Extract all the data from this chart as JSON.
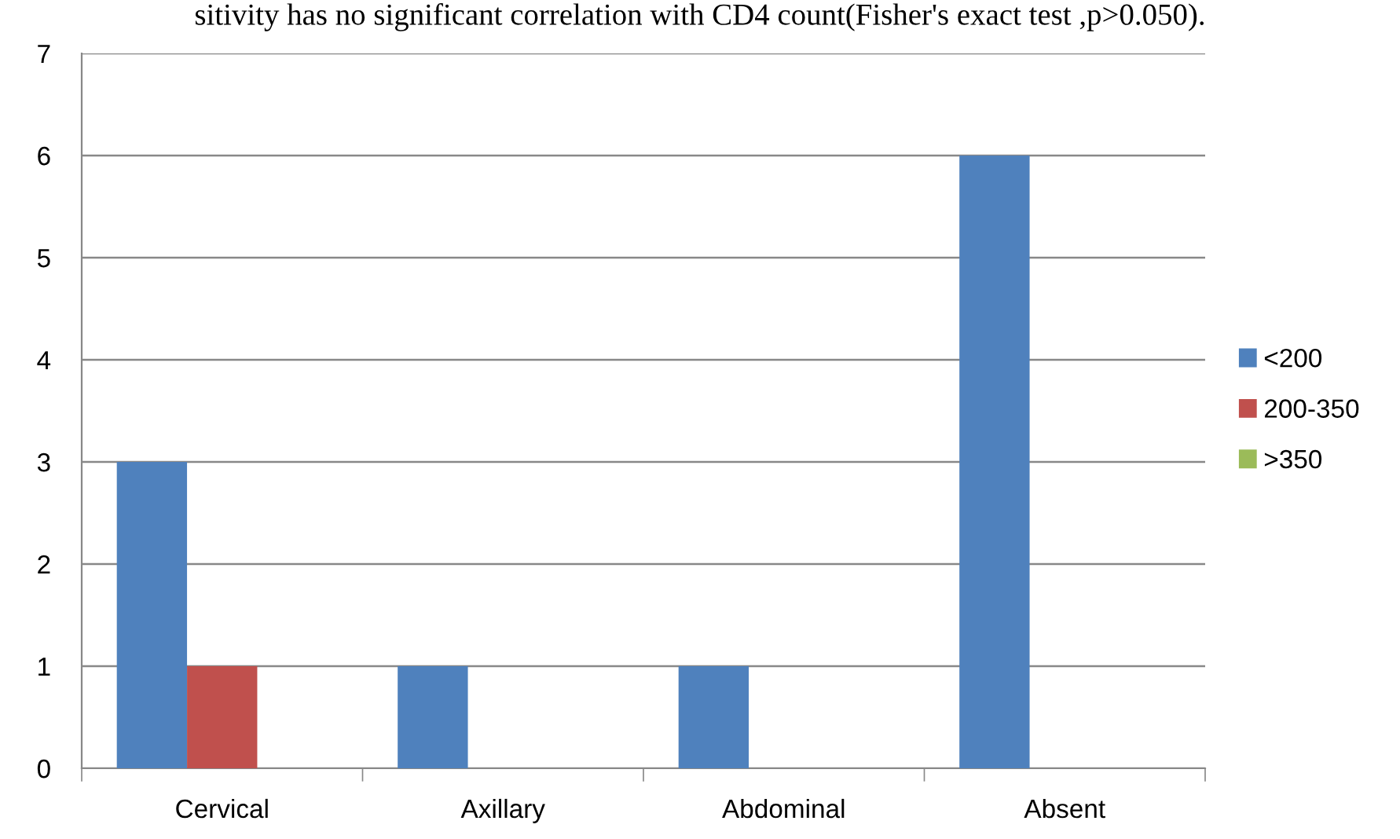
{
  "chart_data": {
    "type": "bar",
    "categories": [
      "Cervical",
      "Axillary",
      "Abdominal",
      "Absent"
    ],
    "series": [
      {
        "name": "<200",
        "color": "#4f81bd",
        "values": [
          3,
          1,
          1,
          6
        ]
      },
      {
        "name": "200-350",
        "color": "#c0504d",
        "values": [
          1,
          0,
          0,
          0
        ]
      },
      {
        "name": ">350",
        "color": "#9bbb59",
        "values": [
          0,
          0,
          0,
          0
        ]
      }
    ],
    "ylim": [
      0,
      7
    ],
    "yticks": [
      0,
      1,
      2,
      3,
      4,
      5,
      6,
      7
    ],
    "grid": "y",
    "legend": "right",
    "annotations": [
      "sitivity has no significant correlation with CD4 count(Fisher's exact test ,p>0.050)."
    ]
  }
}
